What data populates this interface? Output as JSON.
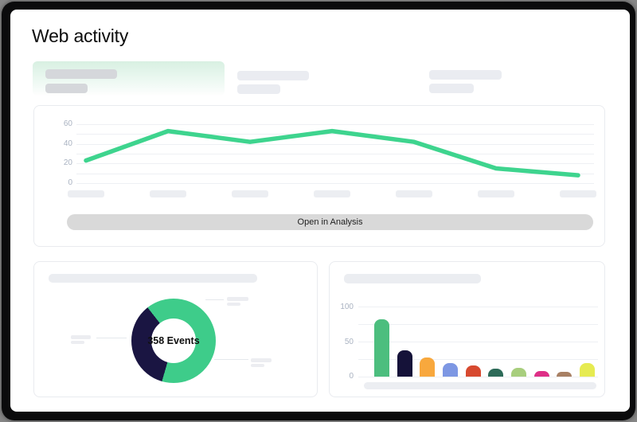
{
  "page": {
    "title": "Web activity"
  },
  "actions": {
    "open_in_analysis": "Open in Analysis"
  },
  "colors": {
    "accent_green": "#3ed48e",
    "donut_green": "#3ecc8a",
    "donut_navy": "#1a1542",
    "button_gray": "#d9d9d9",
    "axis_label": "#a9b2c1",
    "gridline": "#eef0f4",
    "skeleton_light": "#eaecf1",
    "skeleton_dark": "#d5d7db",
    "selected_tab_tint": "#d8f0e2"
  },
  "chart_data": [
    {
      "id": "web-activity-trend",
      "type": "line",
      "values": [
        23,
        53,
        42,
        53,
        42,
        15,
        8
      ],
      "x_labels": [
        "",
        "",
        "",
        "",
        "",
        "",
        ""
      ],
      "ylim": [
        0,
        60
      ],
      "yticks": [
        0,
        10,
        20,
        30,
        40,
        50,
        60
      ],
      "ytick_labels_top_down": [
        "60",
        "40",
        "20",
        "0"
      ],
      "line_color": "#3ed48e",
      "grid": true,
      "legend": "none",
      "x_axis_style": "skeleton placeholder bars instead of text labels"
    },
    {
      "id": "events-donut",
      "type": "pie",
      "donut": true,
      "center_label": "358 Events",
      "start_angle_deg_from_top": 322,
      "slices": [
        {
          "name": "green-segment",
          "value_pct": 65,
          "color": "#3ecc8a"
        },
        {
          "name": "navy-segment",
          "value_pct": 35,
          "color": "#1a1542"
        }
      ],
      "legend": "three skeleton callout labels with leader lines"
    },
    {
      "id": "events-by-category",
      "type": "bar",
      "values": [
        82,
        38,
        28,
        20,
        16,
        12,
        13,
        8,
        7,
        20
      ],
      "colors": [
        "#4cbe7e",
        "#151239",
        "#f8a83d",
        "#7d97e3",
        "#d7492f",
        "#2d6b58",
        "#a8ce7d",
        "#de2f87",
        "#a88063",
        "#e6eb51"
      ],
      "ylim": [
        0,
        100
      ],
      "yticks": [
        0,
        25,
        50,
        75,
        100
      ],
      "ytick_labels_top_down": [
        "100",
        "50",
        "0"
      ],
      "grid": true,
      "x_axis_style": "single skeleton placeholder strip instead of text labels"
    }
  ]
}
